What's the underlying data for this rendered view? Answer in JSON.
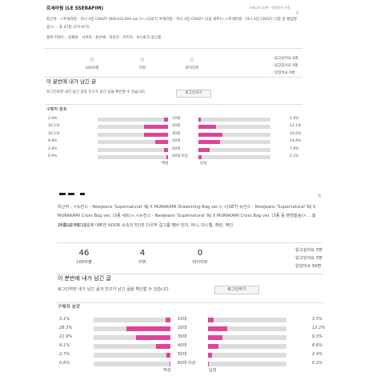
{
  "sections": [
    {
      "title": "르세라핌 (LE SSERAFIM)",
      "top_links": "카테고리 등록 · 신청정보 수정",
      "icon": "핑",
      "recent_works": "최근작 : <르세라핌 - 미니 4집 CRAZY [BALACLAVA ver.]>,<[SET] 르세라핌 - 미니 4집 CRAZY [3종 세트]>,<르세라핌 - 미니 4집 CRAZY [3종 중 랜덤발송]>… 총 47종 (모두보기)",
      "description": "멤버 키워드 : 김채원 · 사쿠라 · 홍은채 · 허윤진 · 카즈하 · 보스토크 걸그룹",
      "stats": [
        {
          "value": 0,
          "label": "100자평"
        },
        {
          "value": 0,
          "label": "리뷰"
        },
        {
          "value": 0,
          "label": "마이리뷰"
        }
      ],
      "reading": [
        "· 읽고싶어요 0명",
        "· 읽고있어요 0명",
        "· 읽었어요 0명"
      ],
      "my_posts_title": "이 분반에 내가 남긴 글",
      "login_text": "로그인하면 내가 남긴 글과 친구가 남긴 글을 확인할 수 있습니다.",
      "login_button": "로그인하기",
      "buyers_title": "구매자 분포",
      "ages": [
        "10대",
        "20대",
        "30대",
        "40대",
        "50대",
        "60대 이상"
      ],
      "female": {
        "label": "여성",
        "values": [
          2.8,
          16.1,
          16.1,
          8.8,
          2.8,
          0.9
        ],
        "value_labels": [
          "2.8%",
          "16.1%",
          "16.1%",
          "8.8%",
          "2.8%",
          "0.9%"
        ]
      },
      "male": {
        "label": "남성",
        "values": [
          1.4,
          12.1,
          16.0,
          14.8,
          7.4,
          2.3
        ],
        "value_labels": [
          "1.4%",
          "12.1%",
          "16.0%",
          "14.8%",
          "7.4%",
          "2.3%"
        ]
      }
    },
    {
      "icon": "핑",
      "recent_works": "최근작 : <뉴진스 - NewJeans 'Supernatural' NJ X MURAKAMI Drawstring Bag ver.>,<[SET] 뉴진스 - NewJeans 'Supernatural' NJ X MURAKAMI Cross Bag ver. (3종 세트)>,<뉴진스 - NewJeans 'Supernatural' NJ X MURAKAMI Cross Bag ver. (3종 중 랜덤발송)>… 총 26종 (모두보기)",
      "description": "2022년 7월 22일에 데뷔한 ADOR 소속의 5인조 다국적 걸그룹 멤버 민지, 하니, 다니엘, 해린, 혜인",
      "stats": [
        {
          "value": 46,
          "label": "100자평"
        },
        {
          "value": 4,
          "label": "리뷰"
        },
        {
          "value": 0,
          "label": "마이리뷰"
        }
      ],
      "reading": [
        "· 읽고싶어요 3명",
        "· 읽고있어요 3명",
        "· 읽었어요 99명"
      ],
      "my_posts_title": "이 분반에 내가 남긴 글",
      "login_text": "로그인하면 내가 남긴 글과 친구가 남긴 글을 확인할 수 있습니다.",
      "login_button": "로그인하기",
      "buyers_title": "구매자 분포",
      "ages": [
        "10대",
        "20대",
        "30대",
        "40대",
        "50대",
        "60대 이상"
      ],
      "female": {
        "label": "여성",
        "values": [
          3.1,
          28.3,
          21.9,
          9.1,
          2.7,
          0.6
        ],
        "value_labels": [
          "3.1%",
          "28.3%",
          "21.9%",
          "9.1%",
          "2.7%",
          "0.6%"
        ]
      },
      "male": {
        "label": "남성",
        "values": [
          3.5,
          12.2,
          9.3,
          6.6,
          2.4,
          0.3
        ],
        "value_labels": [
          "3.5%",
          "12.2%",
          "9.3%",
          "6.6%",
          "2.4%",
          "0.3%"
        ]
      }
    }
  ]
}
